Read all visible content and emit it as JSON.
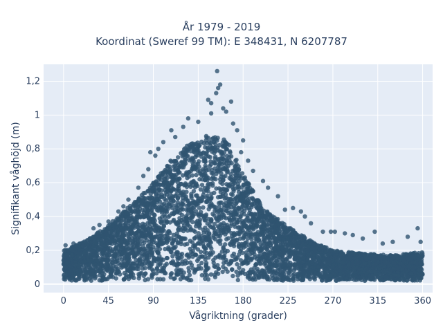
{
  "chart_data": {
    "type": "scatter",
    "title": "År 1979 - 2019",
    "subtitle": "Koordinat (Sweref 99 TM): E 348431, N 6207787",
    "xlabel": "Vågriktning (grader)",
    "ylabel": "Signifikant våghöjd (m)",
    "xlim": [
      -20,
      370
    ],
    "ylim": [
      -0.05,
      1.3
    ],
    "x_ticks": [
      0,
      45,
      90,
      135,
      180,
      225,
      270,
      315,
      360
    ],
    "x_tick_labels": [
      "0",
      "45",
      "90",
      "135",
      "180",
      "225",
      "270",
      "315",
      "360"
    ],
    "y_ticks": [
      0,
      0.2,
      0.4,
      0.6,
      0.8,
      1.0,
      1.2
    ],
    "y_tick_labels": [
      "0",
      "0,2",
      "0,4",
      "0,6",
      "0,8",
      "1",
      "1,2"
    ],
    "grid": true,
    "legend": false,
    "colors": {
      "marker": "#2f5470",
      "plot_background": "#e5ecf6",
      "grid": "#ffffff",
      "text": "#2a3f5f"
    },
    "envelope": {
      "x": [
        0,
        20,
        45,
        70,
        90,
        110,
        130,
        145,
        155,
        165,
        180,
        200,
        225,
        250,
        270,
        300,
        330,
        360
      ],
      "y_max": [
        0.2,
        0.25,
        0.35,
        0.48,
        0.6,
        0.75,
        0.85,
        0.88,
        0.88,
        0.84,
        0.65,
        0.45,
        0.34,
        0.25,
        0.2,
        0.18,
        0.17,
        0.19
      ],
      "y_min": [
        0.02,
        0.02,
        0.02,
        0.02,
        0.02,
        0.02,
        0.02,
        0.02,
        0.02,
        0.02,
        0.02,
        0.02,
        0.02,
        0.02,
        0.02,
        0.02,
        0.02,
        0.02
      ]
    },
    "outliers": [
      {
        "x": 154,
        "y": 1.26
      },
      {
        "x": 157,
        "y": 1.18
      },
      {
        "x": 155,
        "y": 1.16
      },
      {
        "x": 153,
        "y": 1.13
      },
      {
        "x": 145,
        "y": 1.09
      },
      {
        "x": 148,
        "y": 1.07
      },
      {
        "x": 168,
        "y": 1.08
      },
      {
        "x": 163,
        "y": 1.02
      },
      {
        "x": 160,
        "y": 1.04
      },
      {
        "x": 148,
        "y": 1.01
      },
      {
        "x": 125,
        "y": 0.98
      },
      {
        "x": 135,
        "y": 0.96
      },
      {
        "x": 170,
        "y": 0.95
      },
      {
        "x": 174,
        "y": 0.91
      },
      {
        "x": 108,
        "y": 0.91
      },
      {
        "x": 112,
        "y": 0.87
      },
      {
        "x": 120,
        "y": 0.93
      },
      {
        "x": 100,
        "y": 0.84
      },
      {
        "x": 87,
        "y": 0.78
      },
      {
        "x": 92,
        "y": 0.76
      },
      {
        "x": 80,
        "y": 0.64
      },
      {
        "x": 85,
        "y": 0.68
      },
      {
        "x": 75,
        "y": 0.57
      },
      {
        "x": 65,
        "y": 0.5
      },
      {
        "x": 55,
        "y": 0.43
      },
      {
        "x": 60,
        "y": 0.46
      },
      {
        "x": 45,
        "y": 0.37
      },
      {
        "x": 30,
        "y": 0.33
      },
      {
        "x": 185,
        "y": 0.73
      },
      {
        "x": 190,
        "y": 0.67
      },
      {
        "x": 200,
        "y": 0.61
      },
      {
        "x": 205,
        "y": 0.57
      },
      {
        "x": 215,
        "y": 0.52
      },
      {
        "x": 222,
        "y": 0.44
      },
      {
        "x": 230,
        "y": 0.45
      },
      {
        "x": 238,
        "y": 0.43
      },
      {
        "x": 242,
        "y": 0.4
      },
      {
        "x": 248,
        "y": 0.36
      },
      {
        "x": 260,
        "y": 0.31
      },
      {
        "x": 268,
        "y": 0.31
      },
      {
        "x": 272,
        "y": 0.31
      },
      {
        "x": 282,
        "y": 0.3
      },
      {
        "x": 290,
        "y": 0.29
      },
      {
        "x": 300,
        "y": 0.27
      },
      {
        "x": 312,
        "y": 0.31
      },
      {
        "x": 320,
        "y": 0.24
      },
      {
        "x": 330,
        "y": 0.25
      },
      {
        "x": 345,
        "y": 0.28
      },
      {
        "x": 355,
        "y": 0.33
      },
      {
        "x": 358,
        "y": 0.25
      },
      {
        "x": 2,
        "y": 0.23
      },
      {
        "x": 10,
        "y": 0.24
      },
      {
        "x": 36,
        "y": 0.35
      },
      {
        "x": 95,
        "y": 0.8
      },
      {
        "x": 180,
        "y": 0.85
      },
      {
        "x": 178,
        "y": 0.78
      }
    ]
  }
}
